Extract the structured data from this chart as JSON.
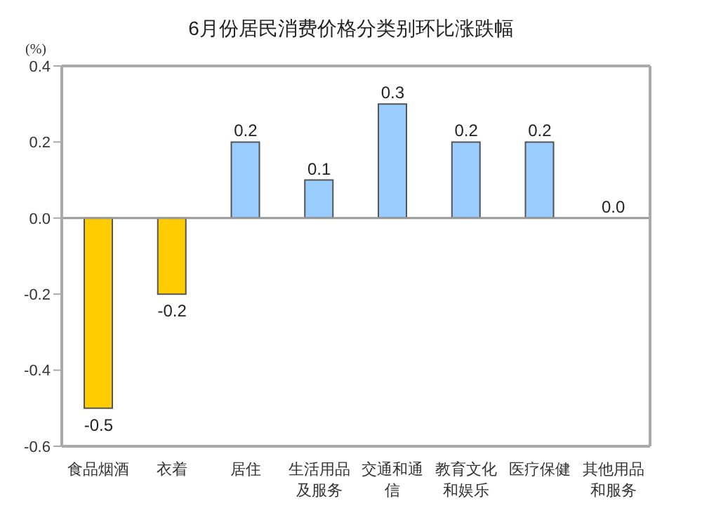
{
  "chart_data": {
    "type": "bar",
    "title": "6月份居民消费价格分类别环比涨跌幅",
    "ylabel": "(%)",
    "categories": [
      "食品烟酒",
      "衣着",
      "居住",
      "生活用品及服务",
      "交通和通信",
      "教育文化和娱乐",
      "医疗保健",
      "其他用品和服务"
    ],
    "values": [
      -0.5,
      -0.2,
      0.2,
      0.1,
      0.3,
      0.2,
      0.2,
      0.0
    ],
    "colors": [
      "#ffcc00",
      "#ffcc00",
      "#99ccff",
      "#99ccff",
      "#99ccff",
      "#99ccff",
      "#99ccff",
      "#99ccff"
    ],
    "value_labels": [
      "-0.5",
      "-0.2",
      "0.2",
      "0.1",
      "0.3",
      "0.2",
      "0.2",
      "0.0"
    ],
    "ylim": [
      -0.6,
      0.4
    ],
    "yticks": [
      0.4,
      0.2,
      {
        "value": 0,
        "label": "0.0"
      },
      -0.2,
      -0.4,
      -0.6
    ],
    "ref_lines": [
      {
        "axis": "y",
        "value": 0,
        "color": "#999999"
      }
    ],
    "grid": false,
    "legend": false
  }
}
